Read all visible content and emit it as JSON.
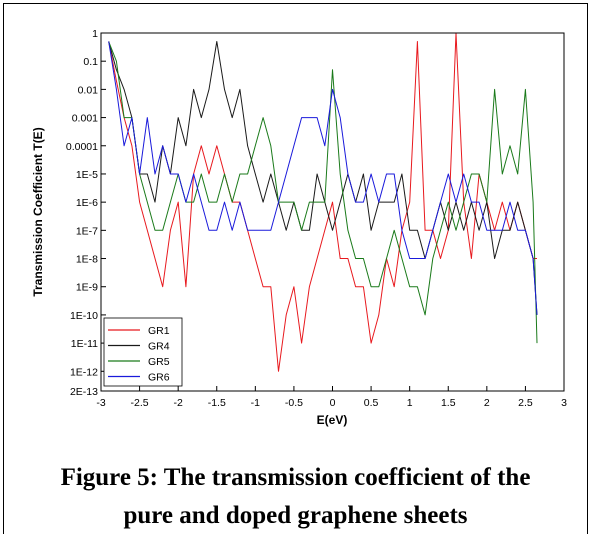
{
  "caption": {
    "line1": "Figure 5: The transmission coefficient of the",
    "line2": "pure and doped graphene sheets"
  },
  "chart_data": {
    "type": "line",
    "title": "",
    "xlabel": "E(eV)",
    "ylabel": "Transmission Coefficient T(E)",
    "xlim": [
      -3,
      3
    ],
    "ylim": [
      2e-13,
      1
    ],
    "yscale": "log",
    "x_ticks": [
      "-3",
      "-2.5",
      "-2",
      "-1.5",
      "-1",
      "-0.5",
      "0",
      "0.5",
      "1",
      "1.5",
      "2",
      "2.5",
      "3"
    ],
    "y_ticks": [
      "1",
      "0.1",
      "0.01",
      "0.001",
      "0.0001",
      "1E-5",
      "1E-6",
      "1E-7",
      "1E-8",
      "1E-9",
      "1E-10",
      "1E-11",
      "1E-12",
      "2E-13"
    ],
    "legend_position": "bottom-left",
    "grid": false,
    "x": [
      -2.9,
      -2.8,
      -2.7,
      -2.6,
      -2.5,
      -2.4,
      -2.3,
      -2.2,
      -2.1,
      -2.0,
      -1.9,
      -1.8,
      -1.7,
      -1.6,
      -1.5,
      -1.4,
      -1.3,
      -1.2,
      -1.1,
      -1.0,
      -0.9,
      -0.8,
      -0.7,
      -0.6,
      -0.5,
      -0.4,
      -0.3,
      -0.2,
      -0.1,
      0.0,
      0.1,
      0.2,
      0.3,
      0.4,
      0.5,
      0.6,
      0.7,
      0.8,
      0.9,
      1.0,
      1.1,
      1.2,
      1.3,
      1.4,
      1.5,
      1.6,
      1.7,
      1.8,
      1.9,
      2.0,
      2.1,
      2.2,
      2.3,
      2.4,
      2.5,
      2.6,
      2.65
    ],
    "series": [
      {
        "name": "GR1",
        "color": "#e8191e",
        "values": [
          0.5,
          0.02,
          0.001,
          0.0001,
          1e-06,
          1e-07,
          1e-08,
          1e-09,
          1e-07,
          1e-06,
          1e-09,
          1e-05,
          0.0001,
          1e-05,
          0.0001,
          1e-05,
          1e-06,
          1e-06,
          1e-07,
          1e-08,
          1e-09,
          1e-09,
          1e-12,
          1e-10,
          1e-09,
          1e-11,
          1e-09,
          1e-08,
          1e-07,
          1e-06,
          1e-08,
          1e-08,
          1e-09,
          1e-09,
          1e-11,
          1e-10,
          1e-08,
          1e-09,
          1e-07,
          1e-06,
          0.5,
          1e-07,
          1e-07,
          1e-08,
          1e-07,
          1.0,
          1e-06,
          1e-08,
          1e-05,
          1e-06,
          1e-07,
          1e-06,
          1e-07,
          1e-06,
          1e-07,
          1e-08,
          1e-08
        ]
      },
      {
        "name": "GR4",
        "color": "#1a1a1a",
        "values": [
          0.5,
          0.05,
          0.01,
          0.001,
          1e-05,
          1e-05,
          1e-06,
          0.0001,
          1e-05,
          0.001,
          0.0001,
          0.01,
          0.001,
          0.01,
          0.5,
          0.01,
          0.001,
          0.01,
          0.0001,
          1e-05,
          1e-06,
          1e-05,
          1e-06,
          1e-07,
          1e-06,
          1e-07,
          1e-07,
          1e-05,
          1e-06,
          1e-07,
          1e-06,
          1e-05,
          1e-06,
          1e-05,
          1e-07,
          1e-06,
          1e-06,
          1e-06,
          1e-05,
          1e-07,
          1e-07,
          1e-08,
          1e-07,
          1e-06,
          1e-07,
          1e-06,
          1e-07,
          1e-06,
          1e-07,
          1e-06,
          1e-08,
          1e-07,
          1e-07,
          1e-06,
          1e-07,
          1e-08,
          1e-10
        ]
      },
      {
        "name": "GR5",
        "color": "#1a7a1a",
        "values": [
          0.5,
          0.1,
          0.001,
          0.001,
          1e-05,
          1e-06,
          1e-07,
          1e-07,
          1e-06,
          1e-05,
          1e-06,
          1e-06,
          1e-05,
          1e-06,
          1e-06,
          1e-05,
          1e-06,
          1e-05,
          1e-05,
          0.0001,
          0.001,
          0.0001,
          1e-06,
          1e-06,
          1e-06,
          1e-07,
          1e-06,
          1e-06,
          1e-06,
          0.05,
          1e-05,
          1e-07,
          1e-08,
          1e-08,
          1e-09,
          1e-09,
          1e-08,
          1e-07,
          1e-08,
          1e-09,
          1e-09,
          1e-10,
          1e-08,
          1e-07,
          1e-06,
          1e-07,
          1e-06,
          1e-05,
          1e-05,
          1e-06,
          0.01,
          1e-05,
          0.0001,
          1e-05,
          0.01,
          1e-06,
          1e-11
        ]
      },
      {
        "name": "GR6",
        "color": "#1a1adb",
        "values": [
          0.5,
          0.01,
          0.0001,
          0.001,
          1e-05,
          0.001,
          1e-05,
          0.0001,
          1e-05,
          1e-05,
          1e-06,
          1e-05,
          1e-06,
          1e-07,
          1e-07,
          1e-06,
          1e-07,
          1e-06,
          1e-07,
          1e-07,
          1e-07,
          1e-07,
          1e-06,
          1e-05,
          0.0001,
          0.001,
          0.001,
          0.001,
          0.0001,
          0.01,
          0.001,
          1e-05,
          1e-06,
          1e-06,
          1e-05,
          1e-06,
          1e-05,
          1e-05,
          1e-07,
          1e-08,
          1e-08,
          1e-08,
          1e-07,
          1e-06,
          1e-05,
          1e-06,
          1e-05,
          1e-06,
          1e-06,
          1e-07,
          1e-07,
          1e-07,
          1e-06,
          1e-07,
          1e-07,
          1e-08,
          1e-10
        ]
      }
    ]
  }
}
